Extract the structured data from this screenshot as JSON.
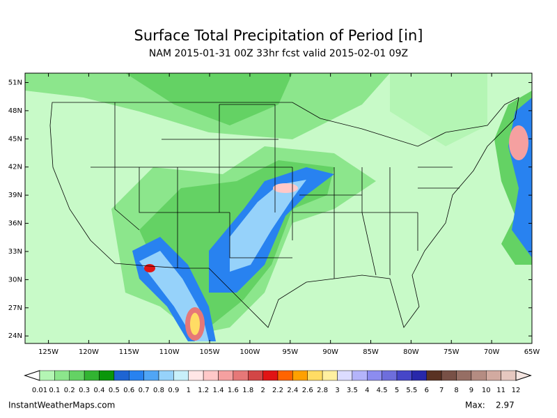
{
  "map": {
    "title": "Surface Total Precipitation of Period [in]",
    "subtitle": "NAM 2015-01-31 00Z 33hr fcst valid 2015-02-01 09Z",
    "xlim": [
      -127.9,
      -65
    ],
    "ylim": [
      23.2,
      52
    ],
    "xticks": [
      {
        "value": -125,
        "label": "125W"
      },
      {
        "value": -120,
        "label": "120W"
      },
      {
        "value": -115,
        "label": "115W"
      },
      {
        "value": -110,
        "label": "110W"
      },
      {
        "value": -105,
        "label": "105W"
      },
      {
        "value": -100,
        "label": "100W"
      },
      {
        "value": -95,
        "label": "95W"
      },
      {
        "value": -90,
        "label": "90W"
      },
      {
        "value": -85,
        "label": "85W"
      },
      {
        "value": -80,
        "label": "80W"
      },
      {
        "value": -75,
        "label": "75W"
      },
      {
        "value": -70,
        "label": "70W"
      },
      {
        "value": -65,
        "label": "65W"
      }
    ],
    "yticks": [
      {
        "value": 51,
        "label": "51N"
      },
      {
        "value": 48,
        "label": "48N"
      },
      {
        "value": 45,
        "label": "45N"
      },
      {
        "value": 42,
        "label": "42N"
      },
      {
        "value": 39,
        "label": "39N"
      },
      {
        "value": 36,
        "label": "36N"
      },
      {
        "value": 33,
        "label": "33N"
      },
      {
        "value": 30,
        "label": "30N"
      },
      {
        "value": 27,
        "label": "27N"
      },
      {
        "value": 24,
        "label": "24N"
      }
    ]
  },
  "colorbar": {
    "labels": [
      0.01,
      0.1,
      0.2,
      0.3,
      0.4,
      0.5,
      0.6,
      0.7,
      0.8,
      0.9,
      1,
      1.2,
      1.4,
      1.6,
      1.8,
      2,
      2.2,
      2.4,
      2.6,
      2.8,
      3,
      3.5,
      4,
      4.5,
      5,
      5.5,
      6,
      7,
      8,
      9,
      10,
      11,
      12
    ],
    "colors": [
      "#ffffff",
      "#b4f5b4",
      "#8ce68c",
      "#64d264",
      "#32b432",
      "#0a960a",
      "#1e64d2",
      "#2882f0",
      "#50a5f5",
      "#96d2fa",
      "#c8f0fa",
      "#ffe6e6",
      "#ffc8c8",
      "#f5a0a0",
      "#e67878",
      "#d24646",
      "#e11414",
      "#ff6400",
      "#ffa000",
      "#ffdc64",
      "#fff0a0",
      "#dcdcff",
      "#b4b4fa",
      "#8c8cf0",
      "#6e6edc",
      "#4646c8",
      "#2828aa",
      "#5a3223",
      "#785046",
      "#966e64",
      "#b48c82",
      "#d2aaa0",
      "#e6c8c0",
      "#f5e6e2"
    ]
  },
  "footer": {
    "site": "InstantWeatherMaps.com",
    "max_label": "Max:",
    "max_value": 2.97
  }
}
